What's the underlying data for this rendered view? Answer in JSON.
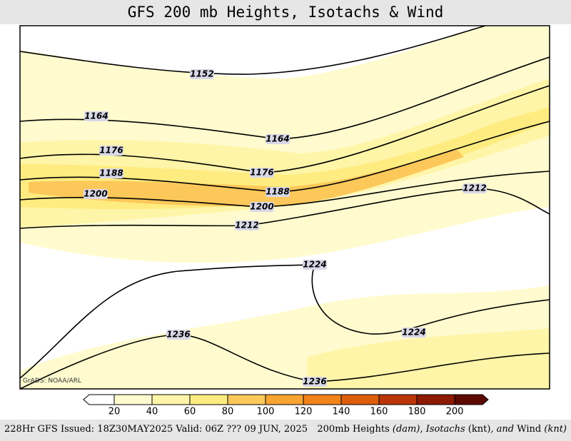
{
  "header": {
    "title": "GFS 200 mb Heights, Isotachs & Wind"
  },
  "contour_labels": [
    "1152",
    "1164",
    "1164",
    "1176",
    "1176",
    "1188",
    "1188",
    "1200",
    "1200",
    "1212",
    "1212",
    "1224",
    "1224",
    "1236",
    "1236"
  ],
  "credit": "GrADS: NOAA/ARL",
  "colorbar": {
    "ticks": [
      20,
      40,
      60,
      80,
      100,
      120,
      140,
      160,
      180,
      200
    ],
    "colors": [
      "#ffffff",
      "#fffbcf",
      "#fff5a8",
      "#ffec80",
      "#fcc85a",
      "#f9a432",
      "#f2821a",
      "#db5e0c",
      "#b93608",
      "#8c1a04",
      "#5c0a02"
    ]
  },
  "footer": {
    "left": "228Hr GFS Issued: 18Z30MAY2025 Valid: 06Z ??? 09 JUN, 2025",
    "right": [
      "200mb Heights ",
      "(dam)",
      ", ",
      "Isotachs ",
      "(knt)",
      ", and ",
      "Wind ",
      "(knt)"
    ]
  }
}
